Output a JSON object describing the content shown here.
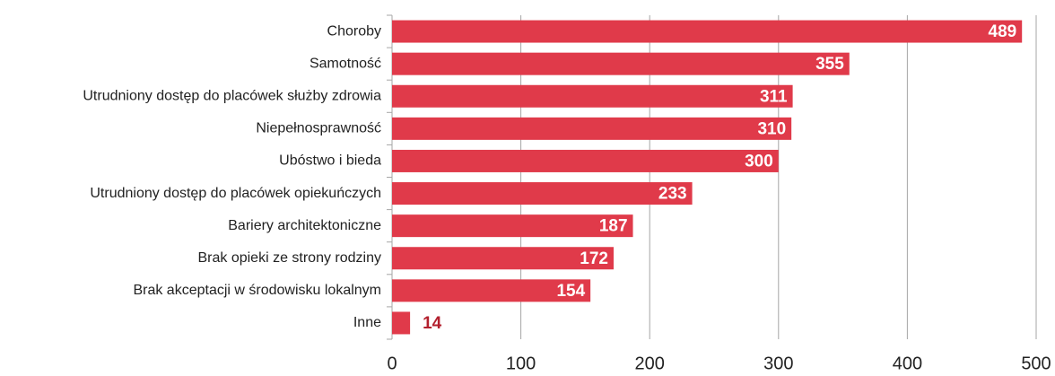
{
  "chart_data": {
    "type": "bar",
    "orientation": "horizontal",
    "categories": [
      "Choroby",
      "Samotność",
      "Utrudniony dostęp do placówek służby zdrowia",
      "Niepełnosprawność",
      "Ubóstwo i bieda",
      "Utrudniony dostęp do placówek opiekuńczych",
      "Bariery architektoniczne",
      "Brak opieki ze strony rodziny",
      "Brak akceptacji w środowisku lokalnym",
      "Inne"
    ],
    "values": [
      489,
      355,
      311,
      310,
      300,
      233,
      187,
      172,
      154,
      14
    ],
    "color": "#e03a4a",
    "xlim": [
      0,
      500
    ],
    "xticks": [
      0,
      100,
      200,
      300,
      400,
      500
    ],
    "grid": true
  }
}
